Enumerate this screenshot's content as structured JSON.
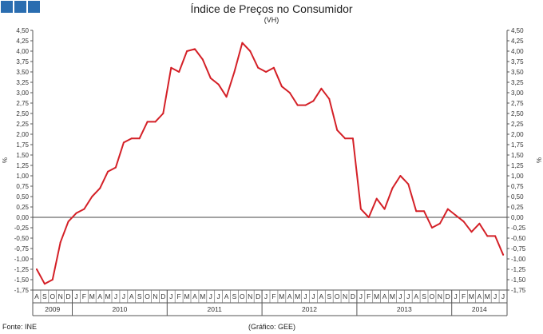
{
  "header": {
    "title": "Índice de Preços no Consumidor",
    "subtitle": "(VH)",
    "logo_color": "#2a6db0"
  },
  "footer": {
    "source": "Fonte: INE",
    "credit": "(Gráfico: GEE)"
  },
  "chart_data": {
    "type": "line",
    "ylabel_left": "%",
    "ylabel_right": "%",
    "ylim": [
      -1.75,
      4.5
    ],
    "ytick_step": 0.25,
    "yticks": [
      "4,50",
      "4,25",
      "4,00",
      "3,75",
      "3,50",
      "3,25",
      "3,00",
      "2,75",
      "2,50",
      "2,25",
      "2,00",
      "1,75",
      "1,50",
      "1,25",
      "1,00",
      "0,75",
      "0,50",
      "0,25",
      "0,00",
      "-0,25",
      "-0,50",
      "-0,75",
      "-1,00",
      "-1,25",
      "-1,50",
      "-1,75"
    ],
    "line_color": "#d42027",
    "month_labels": [
      "A",
      "S",
      "O",
      "N",
      "D",
      "J",
      "F",
      "M",
      "A",
      "M",
      "J",
      "J",
      "A",
      "S",
      "O",
      "N",
      "D",
      "J",
      "F",
      "M",
      "A",
      "M",
      "J",
      "J",
      "A",
      "S",
      "O",
      "N",
      "D",
      "J",
      "F",
      "M",
      "A",
      "M",
      "J",
      "J",
      "A",
      "S",
      "O",
      "N",
      "D",
      "J",
      "F",
      "M",
      "A",
      "M",
      "J",
      "J",
      "A",
      "S",
      "O",
      "N",
      "D",
      "J",
      "F",
      "M",
      "A",
      "M",
      "J",
      "J"
    ],
    "years": [
      {
        "label": "2009",
        "months": 5
      },
      {
        "label": "2010",
        "months": 12
      },
      {
        "label": "2011",
        "months": 12
      },
      {
        "label": "2012",
        "months": 12
      },
      {
        "label": "2013",
        "months": 12
      },
      {
        "label": "2014",
        "months": 7
      }
    ],
    "series": [
      {
        "values": [
          -1.25,
          -1.6,
          -1.5,
          -0.6,
          -0.1,
          0.1,
          0.2,
          0.5,
          0.7,
          1.1,
          1.2,
          1.8,
          1.9,
          1.9,
          2.3,
          2.3,
          2.5,
          3.6,
          3.5,
          4.0,
          4.05,
          3.8,
          3.35,
          3.2,
          2.9,
          3.5,
          4.2,
          4.0,
          3.6,
          3.5,
          3.6,
          3.15,
          3.0,
          2.7,
          2.7,
          2.8,
          3.1,
          2.85,
          2.1,
          1.9,
          1.9,
          0.2,
          0.0,
          0.45,
          0.2,
          0.7,
          1.0,
          0.8,
          0.15,
          0.15,
          -0.25,
          -0.15,
          0.2,
          0.05,
          -0.1,
          -0.35,
          -0.15,
          -0.45,
          -0.45,
          -0.9
        ]
      }
    ]
  }
}
